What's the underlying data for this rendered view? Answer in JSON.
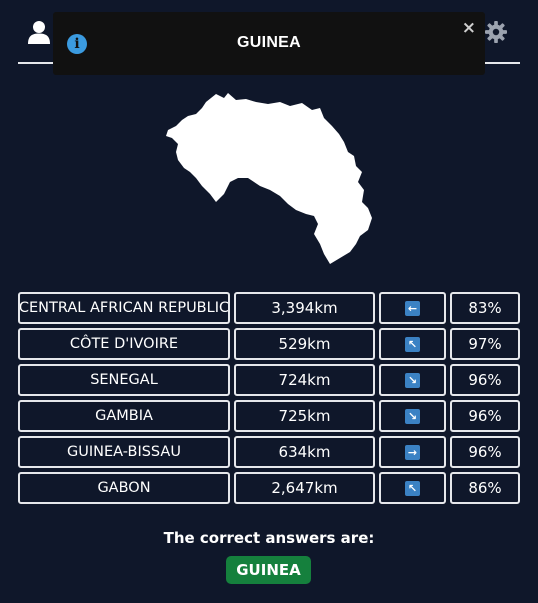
{
  "header": {
    "user_icon": "user-icon",
    "settings_icon": "gear-icon"
  },
  "toast": {
    "title": "GUINEA",
    "close_label": "×",
    "info_glyph": "i",
    "info_icon": "info-icon"
  },
  "map": {
    "country": "GUINEA",
    "fill": "#ffffff"
  },
  "guesses": [
    {
      "country": "CENTRAL AFRICAN REPUBLIC",
      "distance": "3,394km",
      "direction_glyph": "←",
      "direction": "west",
      "proximity": "83%"
    },
    {
      "country": "CÔTE D'IVOIRE",
      "distance": "529km",
      "direction_glyph": "↖",
      "direction": "north-west",
      "proximity": "97%"
    },
    {
      "country": "SENEGAL",
      "distance": "724km",
      "direction_glyph": "↘",
      "direction": "south-east",
      "proximity": "96%"
    },
    {
      "country": "GAMBIA",
      "distance": "725km",
      "direction_glyph": "↘",
      "direction": "south-east",
      "proximity": "96%"
    },
    {
      "country": "GUINEA-BISSAU",
      "distance": "634km",
      "direction_glyph": "→",
      "direction": "east",
      "proximity": "96%"
    },
    {
      "country": "GABON",
      "distance": "2,647km",
      "direction_glyph": "↖",
      "direction": "north-west",
      "proximity": "86%"
    }
  ],
  "result": {
    "label": "The correct answers are:",
    "answer": "GUINEA"
  },
  "colors": {
    "background": "#0f172a",
    "arrow": "#3b82c4",
    "answer": "#15803d",
    "toast": "#111111"
  }
}
